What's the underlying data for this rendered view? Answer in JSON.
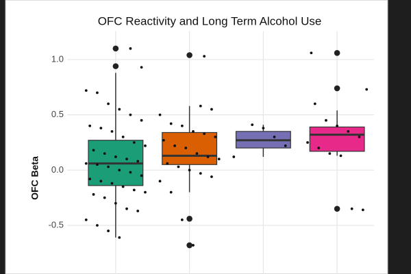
{
  "chart_data": {
    "type": "box",
    "title": "OFC Reactivity and Long Term Alcohol Use",
    "y_label": "OFC Beta",
    "categories": [
      null,
      null,
      null,
      null
    ],
    "ylim": [
      -0.94,
      1.26
    ],
    "yticks": [
      {
        "value": 1,
        "label": "1.0"
      },
      0.5,
      {
        "value": 0,
        "label": "0.0"
      },
      -0.5
    ],
    "grid": true,
    "boxes": [
      {
        "color": "#1b9e77",
        "whislo": -0.61,
        "q1": -0.14,
        "median": 0.06,
        "q3": 0.27,
        "whishi": 0.88,
        "outliers": [
          0.94,
          1.1
        ],
        "points": [
          0.72,
          0.7,
          0.6,
          0.55,
          0.5,
          0.45,
          0.4,
          0.38,
          0.35,
          0.3,
          0.25,
          0.22,
          0.18,
          0.15,
          0.12,
          0.1,
          0.08,
          0.06,
          0.05,
          0.03,
          0.0,
          -0.02,
          -0.05,
          -0.08,
          -0.1,
          -0.12,
          -0.15,
          -0.18,
          -0.2,
          -0.22,
          -0.25,
          -0.3,
          -0.35,
          -0.37,
          -0.45,
          -0.5,
          -0.55,
          -0.61,
          1.1,
          0.93
        ]
      },
      {
        "color": "#d95f02",
        "whislo": -0.2,
        "q1": 0.05,
        "median": 0.13,
        "q3": 0.34,
        "whishi": 0.58,
        "outliers": [
          1.04,
          -0.44,
          -0.68
        ],
        "points": [
          0.58,
          0.55,
          0.5,
          0.42,
          0.4,
          0.35,
          0.33,
          0.3,
          0.27,
          0.22,
          0.2,
          0.15,
          0.12,
          0.1,
          0.06,
          0.03,
          0.0,
          -0.03,
          -0.06,
          -0.1,
          -0.2,
          -0.45,
          -0.68,
          1.03
        ]
      },
      {
        "color": "#7570b3",
        "whislo": 0.12,
        "q1": 0.2,
        "median": 0.27,
        "q3": 0.35,
        "whishi": 0.41,
        "outliers": [],
        "points": [
          0.41,
          0.38,
          0.3,
          0.22,
          0.12
        ]
      },
      {
        "color": "#e7298a",
        "whislo": 0.13,
        "q1": 0.17,
        "median": 0.32,
        "q3": 0.39,
        "whishi": 0.54,
        "outliers": [
          1.06,
          0.74,
          -0.35
        ],
        "points": [
          0.73,
          0.6,
          0.45,
          0.4,
          0.35,
          0.3,
          0.25,
          0.2,
          0.15,
          0.13,
          -0.35,
          -0.36,
          1.06
        ]
      }
    ]
  }
}
